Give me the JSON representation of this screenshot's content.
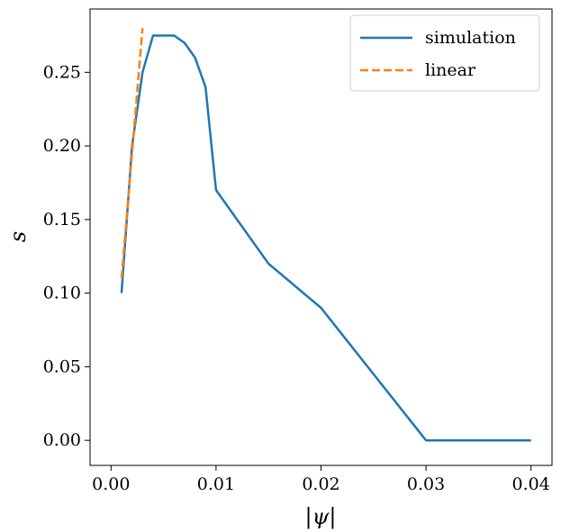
{
  "chart_data": {
    "type": "line",
    "xlabel": "|ψ|",
    "ylabel": "s",
    "xlim": [
      -0.002,
      0.042
    ],
    "ylim": [
      -0.017,
      0.293
    ],
    "xticks": [
      0.0,
      0.01,
      0.02,
      0.03,
      0.04
    ],
    "xtick_labels": [
      "0.00",
      "0.01",
      "0.02",
      "0.03",
      "0.04"
    ],
    "yticks": [
      0.0,
      0.05,
      0.1,
      0.15,
      0.2,
      0.25
    ],
    "ytick_labels": [
      "0.00",
      "0.05",
      "0.10",
      "0.15",
      "0.20",
      "0.25"
    ],
    "grid": false,
    "legend_position": "top-right",
    "series": [
      {
        "name": "simulation",
        "color": "#1f77b4",
        "style": "solid",
        "x": [
          0.001,
          0.002,
          0.003,
          0.004,
          0.005,
          0.006,
          0.007,
          0.008,
          0.009,
          0.01,
          0.015,
          0.02,
          0.03,
          0.04
        ],
        "y": [
          0.1,
          0.2,
          0.25,
          0.275,
          0.275,
          0.275,
          0.27,
          0.26,
          0.24,
          0.17,
          0.12,
          0.09,
          0.0,
          0.0
        ]
      },
      {
        "name": "linear",
        "color": "#ff7f0e",
        "style": "dashed",
        "x": [
          0.001,
          0.003
        ],
        "y": [
          0.11,
          0.28
        ]
      }
    ]
  }
}
